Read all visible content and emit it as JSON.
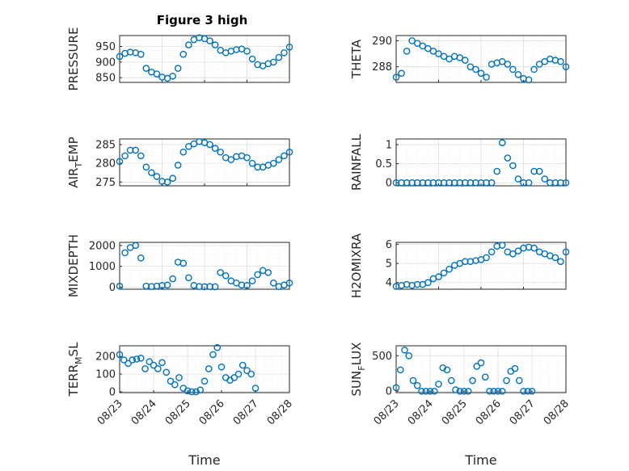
{
  "figure": {
    "title": "Figure 3 high",
    "marker_color": "#0072bd"
  },
  "chart_data": [
    {
      "id": "pressure",
      "type": "scatter",
      "title": "Figure 3 high",
      "ylabel_parts": [
        "PRESSURE"
      ],
      "xlabel": "",
      "show_xticks": false,
      "xlim": [
        "08/23",
        "08/27"
      ],
      "ylim": [
        835,
        985
      ],
      "yticks": [
        850,
        900,
        950
      ],
      "x": [
        "08/23 00:00",
        "08/23 03:00",
        "08/23 06:00",
        "08/23 09:00",
        "08/23 12:00",
        "08/23 15:00",
        "08/23 18:00",
        "08/23 21:00",
        "08/24 00:00",
        "08/24 03:00",
        "08/24 06:00",
        "08/24 09:00",
        "08/24 12:00",
        "08/24 15:00",
        "08/24 18:00",
        "08/24 21:00",
        "08/25 00:00",
        "08/25 03:00",
        "08/25 06:00",
        "08/25 09:00",
        "08/25 12:00",
        "08/25 15:00",
        "08/25 18:00",
        "08/25 21:00",
        "08/26 00:00",
        "08/26 03:00",
        "08/26 06:00",
        "08/26 09:00",
        "08/26 12:00",
        "08/26 15:00",
        "08/26 18:00",
        "08/26 21:00",
        "08/27 00:00"
      ],
      "y": [
        918,
        928,
        932,
        930,
        925,
        880,
        868,
        862,
        852,
        848,
        855,
        880,
        925,
        955,
        972,
        978,
        975,
        968,
        955,
        938,
        930,
        935,
        940,
        942,
        935,
        910,
        892,
        888,
        895,
        900,
        915,
        930,
        948
      ]
    },
    {
      "id": "theta",
      "type": "scatter",
      "ylabel_parts": [
        "THETA"
      ],
      "xlabel": "",
      "show_xticks": false,
      "xlim": [
        "08/23",
        "08/27"
      ],
      "ylim": [
        286.8,
        290.4
      ],
      "yticks": [
        288,
        290
      ],
      "x": [
        "08/23 00:00",
        "08/23 03:00",
        "08/23 06:00",
        "08/23 09:00",
        "08/23 12:00",
        "08/23 15:00",
        "08/23 18:00",
        "08/23 21:00",
        "08/24 00:00",
        "08/24 03:00",
        "08/24 06:00",
        "08/24 09:00",
        "08/24 12:00",
        "08/24 15:00",
        "08/24 18:00",
        "08/24 21:00",
        "08/25 00:00",
        "08/25 03:00",
        "08/25 06:00",
        "08/25 09:00",
        "08/25 12:00",
        "08/25 15:00",
        "08/25 18:00",
        "08/25 21:00",
        "08/26 00:00",
        "08/26 03:00",
        "08/26 06:00",
        "08/26 09:00",
        "08/26 12:00",
        "08/26 15:00",
        "08/26 18:00",
        "08/26 21:00",
        "08/27 00:00"
      ],
      "y": [
        287.2,
        287.5,
        289.2,
        290.0,
        289.8,
        289.6,
        289.4,
        289.2,
        289.0,
        288.8,
        288.6,
        288.8,
        288.7,
        288.5,
        288.0,
        287.8,
        287.5,
        287.2,
        288.2,
        288.3,
        288.4,
        288.2,
        287.8,
        287.4,
        287.1,
        287.0,
        287.8,
        288.2,
        288.4,
        288.6,
        288.5,
        288.4,
        288.0
      ]
    },
    {
      "id": "air_temp",
      "type": "scatter",
      "ylabel_parts": [
        "AIR",
        "T",
        "EMP"
      ],
      "xlabel": "",
      "show_xticks": false,
      "xlim": [
        "08/23",
        "08/27"
      ],
      "ylim": [
        274,
        286.5
      ],
      "yticks": [
        275,
        280,
        285
      ],
      "x": [
        "08/23 00:00",
        "08/23 03:00",
        "08/23 06:00",
        "08/23 09:00",
        "08/23 12:00",
        "08/23 15:00",
        "08/23 18:00",
        "08/23 21:00",
        "08/24 00:00",
        "08/24 03:00",
        "08/24 06:00",
        "08/24 09:00",
        "08/24 12:00",
        "08/24 15:00",
        "08/24 18:00",
        "08/24 21:00",
        "08/25 00:00",
        "08/25 03:00",
        "08/25 06:00",
        "08/25 09:00",
        "08/25 12:00",
        "08/25 15:00",
        "08/25 18:00",
        "08/25 21:00",
        "08/26 00:00",
        "08/26 03:00",
        "08/26 06:00",
        "08/26 09:00",
        "08/26 12:00",
        "08/26 15:00",
        "08/26 18:00",
        "08/26 21:00",
        "08/27 00:00"
      ],
      "y": [
        280.5,
        282,
        283.5,
        283.5,
        282,
        279,
        277.5,
        276.5,
        275.2,
        275,
        276,
        279.5,
        283,
        284.5,
        285.2,
        285.8,
        285.5,
        285,
        284,
        283,
        281.5,
        281,
        281.8,
        282,
        281.5,
        280,
        279,
        279,
        279.5,
        280,
        281,
        282,
        283
      ]
    },
    {
      "id": "rainfall",
      "type": "scatter",
      "ylabel_parts": [
        "RAINFALL"
      ],
      "xlabel": "",
      "show_xticks": false,
      "xlim": [
        "08/23",
        "08/27"
      ],
      "ylim": [
        -0.08,
        1.15
      ],
      "yticks": [
        0,
        0.5,
        1
      ],
      "x": [
        "08/23 00:00",
        "08/23 03:00",
        "08/23 06:00",
        "08/23 09:00",
        "08/23 12:00",
        "08/23 15:00",
        "08/23 18:00",
        "08/23 21:00",
        "08/24 00:00",
        "08/24 03:00",
        "08/24 06:00",
        "08/24 09:00",
        "08/24 12:00",
        "08/24 15:00",
        "08/24 18:00",
        "08/24 21:00",
        "08/25 00:00",
        "08/25 03:00",
        "08/25 06:00",
        "08/25 09:00",
        "08/25 12:00",
        "08/25 15:00",
        "08/25 18:00",
        "08/25 21:00",
        "08/26 00:00",
        "08/26 03:00",
        "08/26 06:00",
        "08/26 09:00",
        "08/26 12:00",
        "08/26 15:00",
        "08/26 18:00",
        "08/26 21:00",
        "08/27 00:00"
      ],
      "y": [
        0,
        0,
        0,
        0,
        0,
        0,
        0,
        0,
        0,
        0,
        0,
        0,
        0,
        0,
        0,
        0,
        0,
        0,
        0,
        0.3,
        1.05,
        0.65,
        0.45,
        0.1,
        0,
        0,
        0.3,
        0.3,
        0.1,
        0,
        0,
        0,
        0
      ]
    },
    {
      "id": "mixdepth",
      "type": "scatter",
      "ylabel_parts": [
        "MIXDEPTH"
      ],
      "xlabel": "",
      "show_xticks": false,
      "xlim": [
        "08/23",
        "08/27"
      ],
      "ylim": [
        -100,
        2150
      ],
      "yticks": [
        0,
        1000,
        2000
      ],
      "x": [
        "08/23 00:00",
        "08/23 03:00",
        "08/23 06:00",
        "08/23 09:00",
        "08/23 12:00",
        "08/23 15:00",
        "08/23 18:00",
        "08/23 21:00",
        "08/24 00:00",
        "08/24 03:00",
        "08/24 06:00",
        "08/24 09:00",
        "08/24 12:00",
        "08/24 15:00",
        "08/24 18:00",
        "08/24 21:00",
        "08/25 00:00",
        "08/25 03:00",
        "08/25 06:00",
        "08/25 09:00",
        "08/25 12:00",
        "08/25 15:00",
        "08/25 18:00",
        "08/25 21:00",
        "08/26 00:00",
        "08/26 03:00",
        "08/26 06:00",
        "08/26 09:00",
        "08/26 12:00",
        "08/26 15:00",
        "08/26 18:00",
        "08/26 21:00",
        "08/27 00:00"
      ],
      "y": [
        50,
        1650,
        1900,
        2000,
        1400,
        50,
        30,
        50,
        80,
        100,
        400,
        1200,
        1150,
        450,
        80,
        30,
        20,
        30,
        20,
        700,
        550,
        300,
        200,
        100,
        80,
        300,
        600,
        800,
        700,
        200,
        30,
        100,
        200
      ]
    },
    {
      "id": "h2omixra",
      "type": "scatter",
      "ylabel_parts": [
        "H2OMIXRA"
      ],
      "xlabel": "",
      "show_xticks": false,
      "xlim": [
        "08/23",
        "08/27"
      ],
      "ylim": [
        3.65,
        6.1
      ],
      "yticks": [
        4,
        5,
        6
      ],
      "x": [
        "08/23 00:00",
        "08/23 03:00",
        "08/23 06:00",
        "08/23 09:00",
        "08/23 12:00",
        "08/23 15:00",
        "08/23 18:00",
        "08/23 21:00",
        "08/24 00:00",
        "08/24 03:00",
        "08/24 06:00",
        "08/24 09:00",
        "08/24 12:00",
        "08/24 15:00",
        "08/24 18:00",
        "08/24 21:00",
        "08/25 00:00",
        "08/25 03:00",
        "08/25 06:00",
        "08/25 09:00",
        "08/25 12:00",
        "08/25 15:00",
        "08/25 18:00",
        "08/25 21:00",
        "08/26 00:00",
        "08/26 03:00",
        "08/26 06:00",
        "08/26 09:00",
        "08/26 12:00",
        "08/26 15:00",
        "08/26 18:00",
        "08/26 21:00",
        "08/27 00:00"
      ],
      "y": [
        3.8,
        3.85,
        3.9,
        3.85,
        3.9,
        3.9,
        4.0,
        4.2,
        4.3,
        4.5,
        4.7,
        4.9,
        5.0,
        5.1,
        5.1,
        5.15,
        5.2,
        5.3,
        5.6,
        5.9,
        5.95,
        5.6,
        5.5,
        5.65,
        5.8,
        5.85,
        5.8,
        5.6,
        5.5,
        5.4,
        5.3,
        5.1,
        5.6
      ]
    },
    {
      "id": "terr_msl",
      "type": "scatter",
      "ylabel_parts": [
        "TERR",
        "M",
        "SL"
      ],
      "xlabel": "Time",
      "show_xticks": true,
      "xlim": [
        "08/23",
        "08/28"
      ],
      "ylim": [
        -5,
        260
      ],
      "yticks": [
        0,
        100,
        200
      ],
      "x": [
        "08/23 00:00",
        "08/23 03:00",
        "08/23 06:00",
        "08/23 09:00",
        "08/23 12:00",
        "08/23 15:00",
        "08/23 18:00",
        "08/23 21:00",
        "08/24 00:00",
        "08/24 03:00",
        "08/24 06:00",
        "08/24 09:00",
        "08/24 12:00",
        "08/24 15:00",
        "08/24 18:00",
        "08/24 21:00",
        "08/25 00:00",
        "08/25 03:00",
        "08/25 06:00",
        "08/25 09:00",
        "08/25 12:00",
        "08/25 15:00",
        "08/25 18:00",
        "08/25 21:00",
        "08/26 00:00",
        "08/26 03:00",
        "08/26 06:00",
        "08/26 09:00",
        "08/26 12:00",
        "08/26 15:00",
        "08/26 18:00",
        "08/26 21:00",
        "08/27 00:00"
      ],
      "y": [
        210,
        180,
        160,
        180,
        185,
        190,
        130,
        170,
        150,
        130,
        165,
        110,
        60,
        40,
        80,
        20,
        5,
        0,
        0,
        10,
        60,
        130,
        210,
        250,
        140,
        80,
        65,
        80,
        100,
        150,
        120,
        100,
        20
      ]
    },
    {
      "id": "sun_flux",
      "type": "scatter",
      "ylabel_parts": [
        "SUN",
        "F",
        "LUX"
      ],
      "xlabel": "Time",
      "show_xticks": true,
      "xlim": [
        "08/23",
        "08/28"
      ],
      "ylim": [
        -20,
        640
      ],
      "yticks": [
        0,
        500
      ],
      "x": [
        "08/23 00:00",
        "08/23 03:00",
        "08/23 06:00",
        "08/23 09:00",
        "08/23 12:00",
        "08/23 15:00",
        "08/23 18:00",
        "08/23 21:00",
        "08/24 00:00",
        "08/24 03:00",
        "08/24 06:00",
        "08/24 09:00",
        "08/24 12:00",
        "08/24 15:00",
        "08/24 18:00",
        "08/24 21:00",
        "08/25 00:00",
        "08/25 03:00",
        "08/25 06:00",
        "08/25 09:00",
        "08/25 12:00",
        "08/25 15:00",
        "08/25 18:00",
        "08/25 21:00",
        "08/26 00:00",
        "08/26 03:00",
        "08/26 06:00",
        "08/26 09:00",
        "08/26 12:00",
        "08/26 15:00",
        "08/26 18:00",
        "08/26 21:00",
        "08/27 00:00"
      ],
      "y": [
        50,
        300,
        580,
        500,
        150,
        80,
        0,
        0,
        0,
        0,
        100,
        330,
        300,
        150,
        20,
        0,
        0,
        0,
        150,
        350,
        400,
        200,
        0,
        0,
        0,
        0,
        150,
        280,
        320,
        150,
        0,
        0,
        0
      ]
    }
  ],
  "xticklabels": [
    "08/23",
    "08/24",
    "08/25",
    "08/26",
    "08/27",
    "08/28"
  ]
}
